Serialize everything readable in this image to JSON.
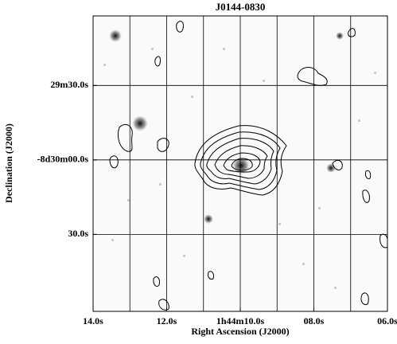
{
  "chart_data": {
    "type": "image",
    "title": "J0144-0830",
    "x_label": "Right Ascension (J2000)",
    "y_label": "Declination (J2000)",
    "xlim": [
      14,
      6
    ],
    "xticks": [
      {
        "value": 14,
        "label": "14.0s"
      },
      {
        "value": 12,
        "label": "12.0s"
      },
      {
        "value": 10,
        "label": "1h44m10.0s"
      },
      {
        "value": 8,
        "label": "08.0s"
      },
      {
        "value": 6,
        "label": "06.0s"
      }
    ],
    "xminorticks": [
      13,
      11,
      9,
      7
    ],
    "ylim": [
      -61,
      58
    ],
    "yticks": [
      {
        "value": 30,
        "label": "29m30.0s"
      },
      {
        "value": 0,
        "label": "-8d30m00.0s"
      },
      {
        "value": -30,
        "label": "30.0s"
      }
    ],
    "grid": true
  }
}
